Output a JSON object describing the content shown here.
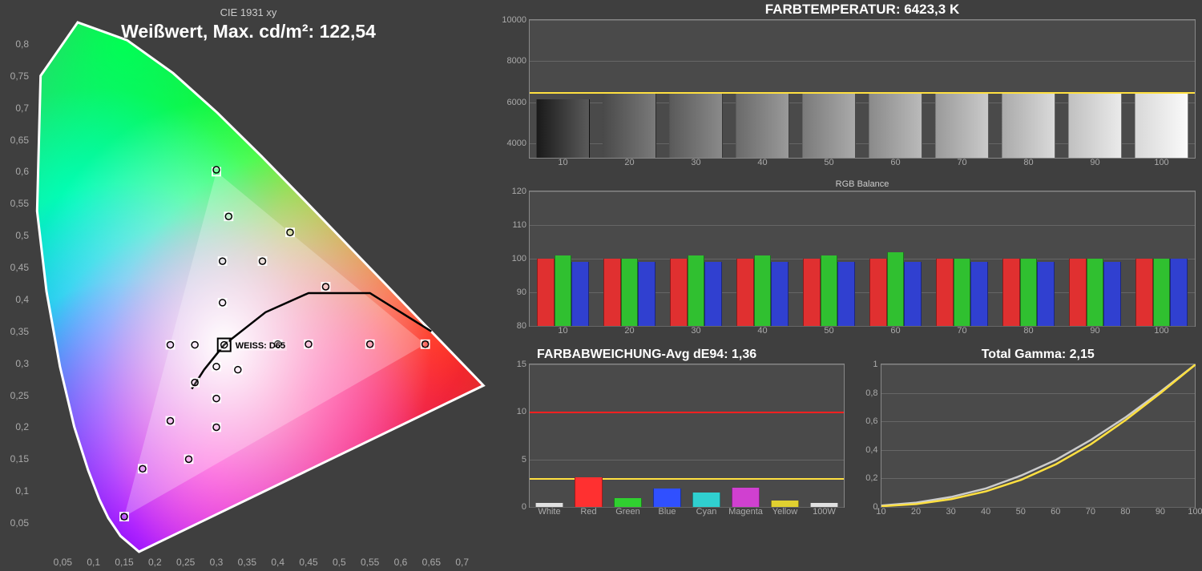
{
  "background_color": "#3f3f3f",
  "axis_color": "#aaaaaa",
  "grid_color": "#666666",
  "cie": {
    "title": "CIE 1931 xy",
    "whitepoint_label": "Weißwert, Max. cd/m²: 122,54",
    "d65_label": "WEISS: D65",
    "d65_xy": [
      0.3127,
      0.329
    ],
    "xlim": [
      0,
      0.75
    ],
    "ylim": [
      0,
      0.85
    ],
    "xticks": [
      "0,05",
      "0,1",
      "0,15",
      "0,2",
      "0,25",
      "0,3",
      "0,35",
      "0,4",
      "0,45",
      "0,5",
      "0,55",
      "0,6",
      "0,65",
      "0,7"
    ],
    "xtick_vals": [
      0.05,
      0.1,
      0.15,
      0.2,
      0.25,
      0.3,
      0.35,
      0.4,
      0.45,
      0.5,
      0.55,
      0.6,
      0.65,
      0.7
    ],
    "yticks": [
      "0,05",
      "0,1",
      "0,15",
      "0,2",
      "0,25",
      "0,3",
      "0,35",
      "0,4",
      "0,45",
      "0,5",
      "0,55",
      "0,6",
      "0,65",
      "0,7",
      "0,75",
      "0,8"
    ],
    "ytick_vals": [
      0.05,
      0.1,
      0.15,
      0.2,
      0.25,
      0.3,
      0.35,
      0.4,
      0.45,
      0.5,
      0.55,
      0.6,
      0.65,
      0.7,
      0.75,
      0.8
    ],
    "locus_outline": "#ffffff",
    "targets": [
      [
        0.3127,
        0.329
      ],
      [
        0.64,
        0.33
      ],
      [
        0.3,
        0.6
      ],
      [
        0.15,
        0.06
      ],
      [
        0.225,
        0.329
      ],
      [
        0.265,
        0.329
      ],
      [
        0.42,
        0.505
      ],
      [
        0.32,
        0.53
      ],
      [
        0.375,
        0.46
      ],
      [
        0.478,
        0.42
      ],
      [
        0.31,
        0.46
      ],
      [
        0.31,
        0.395
      ],
      [
        0.225,
        0.21
      ],
      [
        0.265,
        0.27
      ],
      [
        0.45,
        0.33
      ],
      [
        0.55,
        0.33
      ],
      [
        0.18,
        0.135
      ],
      [
        0.4,
        0.33
      ],
      [
        0.3,
        0.245
      ],
      [
        0.335,
        0.29
      ],
      [
        0.3,
        0.295
      ],
      [
        0.255,
        0.15
      ],
      [
        0.3,
        0.2
      ]
    ],
    "measured": [
      [
        0.3127,
        0.329
      ],
      [
        0.64,
        0.33
      ],
      [
        0.3,
        0.603
      ],
      [
        0.15,
        0.06
      ],
      [
        0.225,
        0.329
      ],
      [
        0.265,
        0.329
      ],
      [
        0.42,
        0.505
      ],
      [
        0.32,
        0.53
      ],
      [
        0.375,
        0.46
      ],
      [
        0.478,
        0.42
      ],
      [
        0.31,
        0.46
      ],
      [
        0.31,
        0.395
      ],
      [
        0.225,
        0.21
      ],
      [
        0.265,
        0.27
      ],
      [
        0.45,
        0.33
      ],
      [
        0.55,
        0.33
      ],
      [
        0.18,
        0.135
      ],
      [
        0.4,
        0.33
      ],
      [
        0.3,
        0.245
      ],
      [
        0.335,
        0.29
      ],
      [
        0.3,
        0.295
      ],
      [
        0.255,
        0.15
      ],
      [
        0.3,
        0.2
      ]
    ],
    "target_marker": {
      "shape": "square",
      "size": 10,
      "stroke": "#ffffff",
      "fill": "none"
    },
    "measured_marker": {
      "shape": "circle",
      "size": 4,
      "stroke": "#000000"
    },
    "planckian_curve": true,
    "gamut_triangle": [
      [
        0.64,
        0.33
      ],
      [
        0.3,
        0.6
      ],
      [
        0.15,
        0.06
      ]
    ],
    "gamut_fill_opacity": 0.25
  },
  "color_temp": {
    "title": "FARBTEMPERATUR: 6423,3 K",
    "ylim": [
      3300,
      10000
    ],
    "yticks": [
      4000,
      6000,
      8000,
      10000
    ],
    "xticks": [
      10,
      20,
      30,
      40,
      50,
      60,
      70,
      80,
      90,
      100
    ],
    "ref_line": 6500,
    "ref_color": "#ffe040",
    "bar_width": 0.8,
    "values": [
      6150,
      6420,
      6430,
      6430,
      6430,
      6420,
      6420,
      6420,
      6420,
      6420
    ],
    "bar_gradients": [
      [
        "#1a1a1a",
        "#5a5a5a"
      ],
      [
        "#4a4a4a",
        "#7a7a7a"
      ],
      [
        "#5a5a5a",
        "#8a8a8a"
      ],
      [
        "#6a6a6a",
        "#9a9a9a"
      ],
      [
        "#7a7a7a",
        "#aaaaaa"
      ],
      [
        "#8a8a8a",
        "#bababa"
      ],
      [
        "#9a9a9a",
        "#cacaca"
      ],
      [
        "#aaaaaa",
        "#dadada"
      ],
      [
        "#c0c0c0",
        "#eaeaea"
      ],
      [
        "#d8d8d8",
        "#fafafa"
      ]
    ]
  },
  "rgb_balance": {
    "title": "RGB Balance",
    "ylim": [
      80,
      120
    ],
    "yticks": [
      80,
      90,
      100,
      110,
      120
    ],
    "xticks": [
      10,
      20,
      30,
      40,
      50,
      60,
      70,
      80,
      90,
      100
    ],
    "ref_line": 100,
    "ref_color": "#888888",
    "group_width": 0.78,
    "bar_colors": [
      "#e03030",
      "#30c030",
      "#3040d0"
    ],
    "values": [
      [
        100,
        101,
        99
      ],
      [
        100,
        100,
        99
      ],
      [
        100,
        101,
        99
      ],
      [
        100,
        101,
        99
      ],
      [
        100,
        101,
        99
      ],
      [
        100,
        102,
        99
      ],
      [
        100,
        100,
        99
      ],
      [
        100,
        100,
        99
      ],
      [
        100,
        100,
        99
      ],
      [
        100,
        100,
        100
      ]
    ]
  },
  "color_error": {
    "title": "FARBABWEICHUNG-Avg dE94: 1,36",
    "ylim": [
      0,
      15
    ],
    "yticks": [
      0,
      5,
      10,
      15
    ],
    "xlabels": [
      "White",
      "Red",
      "Green",
      "Blue",
      "Cyan",
      "Magenta",
      "Yellow",
      "100W"
    ],
    "ref1": {
      "value": 10,
      "color": "#ff2020"
    },
    "ref2": {
      "value": 3,
      "color": "#ffe040"
    },
    "bar_width": 0.7,
    "bars": [
      {
        "value": 0.4,
        "color": "#e0e0e0"
      },
      {
        "value": 3.1,
        "color": "#ff3030"
      },
      {
        "value": 0.9,
        "color": "#30d030"
      },
      {
        "value": 1.9,
        "color": "#3050ff"
      },
      {
        "value": 1.5,
        "color": "#30d0d0"
      },
      {
        "value": 2.0,
        "color": "#d040d0"
      },
      {
        "value": 0.7,
        "color": "#e0d030"
      },
      {
        "value": 0.4,
        "color": "#e0e0e0"
      }
    ]
  },
  "gamma": {
    "title": "Total Gamma: 2,15",
    "xlim": [
      10,
      100
    ],
    "ylim": [
      0,
      1
    ],
    "xticks": [
      10,
      20,
      30,
      40,
      50,
      60,
      70,
      80,
      90,
      100
    ],
    "yticks": [
      "0",
      "0,2",
      "0,4",
      "0,6",
      "0,8",
      "1"
    ],
    "ytick_vals": [
      0,
      0.2,
      0.4,
      0.6,
      0.8,
      1.0
    ],
    "curves": [
      {
        "color": "#cccccc",
        "width": 2.5,
        "points": [
          [
            10,
            0.01
          ],
          [
            20,
            0.03
          ],
          [
            30,
            0.07
          ],
          [
            40,
            0.13
          ],
          [
            50,
            0.22
          ],
          [
            60,
            0.33
          ],
          [
            70,
            0.47
          ],
          [
            80,
            0.63
          ],
          [
            90,
            0.81
          ],
          [
            100,
            1.0
          ]
        ]
      },
      {
        "color": "#ffe040",
        "width": 2.5,
        "points": [
          [
            10,
            0.005
          ],
          [
            20,
            0.02
          ],
          [
            30,
            0.055
          ],
          [
            40,
            0.11
          ],
          [
            50,
            0.19
          ],
          [
            60,
            0.3
          ],
          [
            70,
            0.44
          ],
          [
            80,
            0.61
          ],
          [
            90,
            0.8
          ],
          [
            100,
            1.0
          ]
        ]
      }
    ]
  }
}
